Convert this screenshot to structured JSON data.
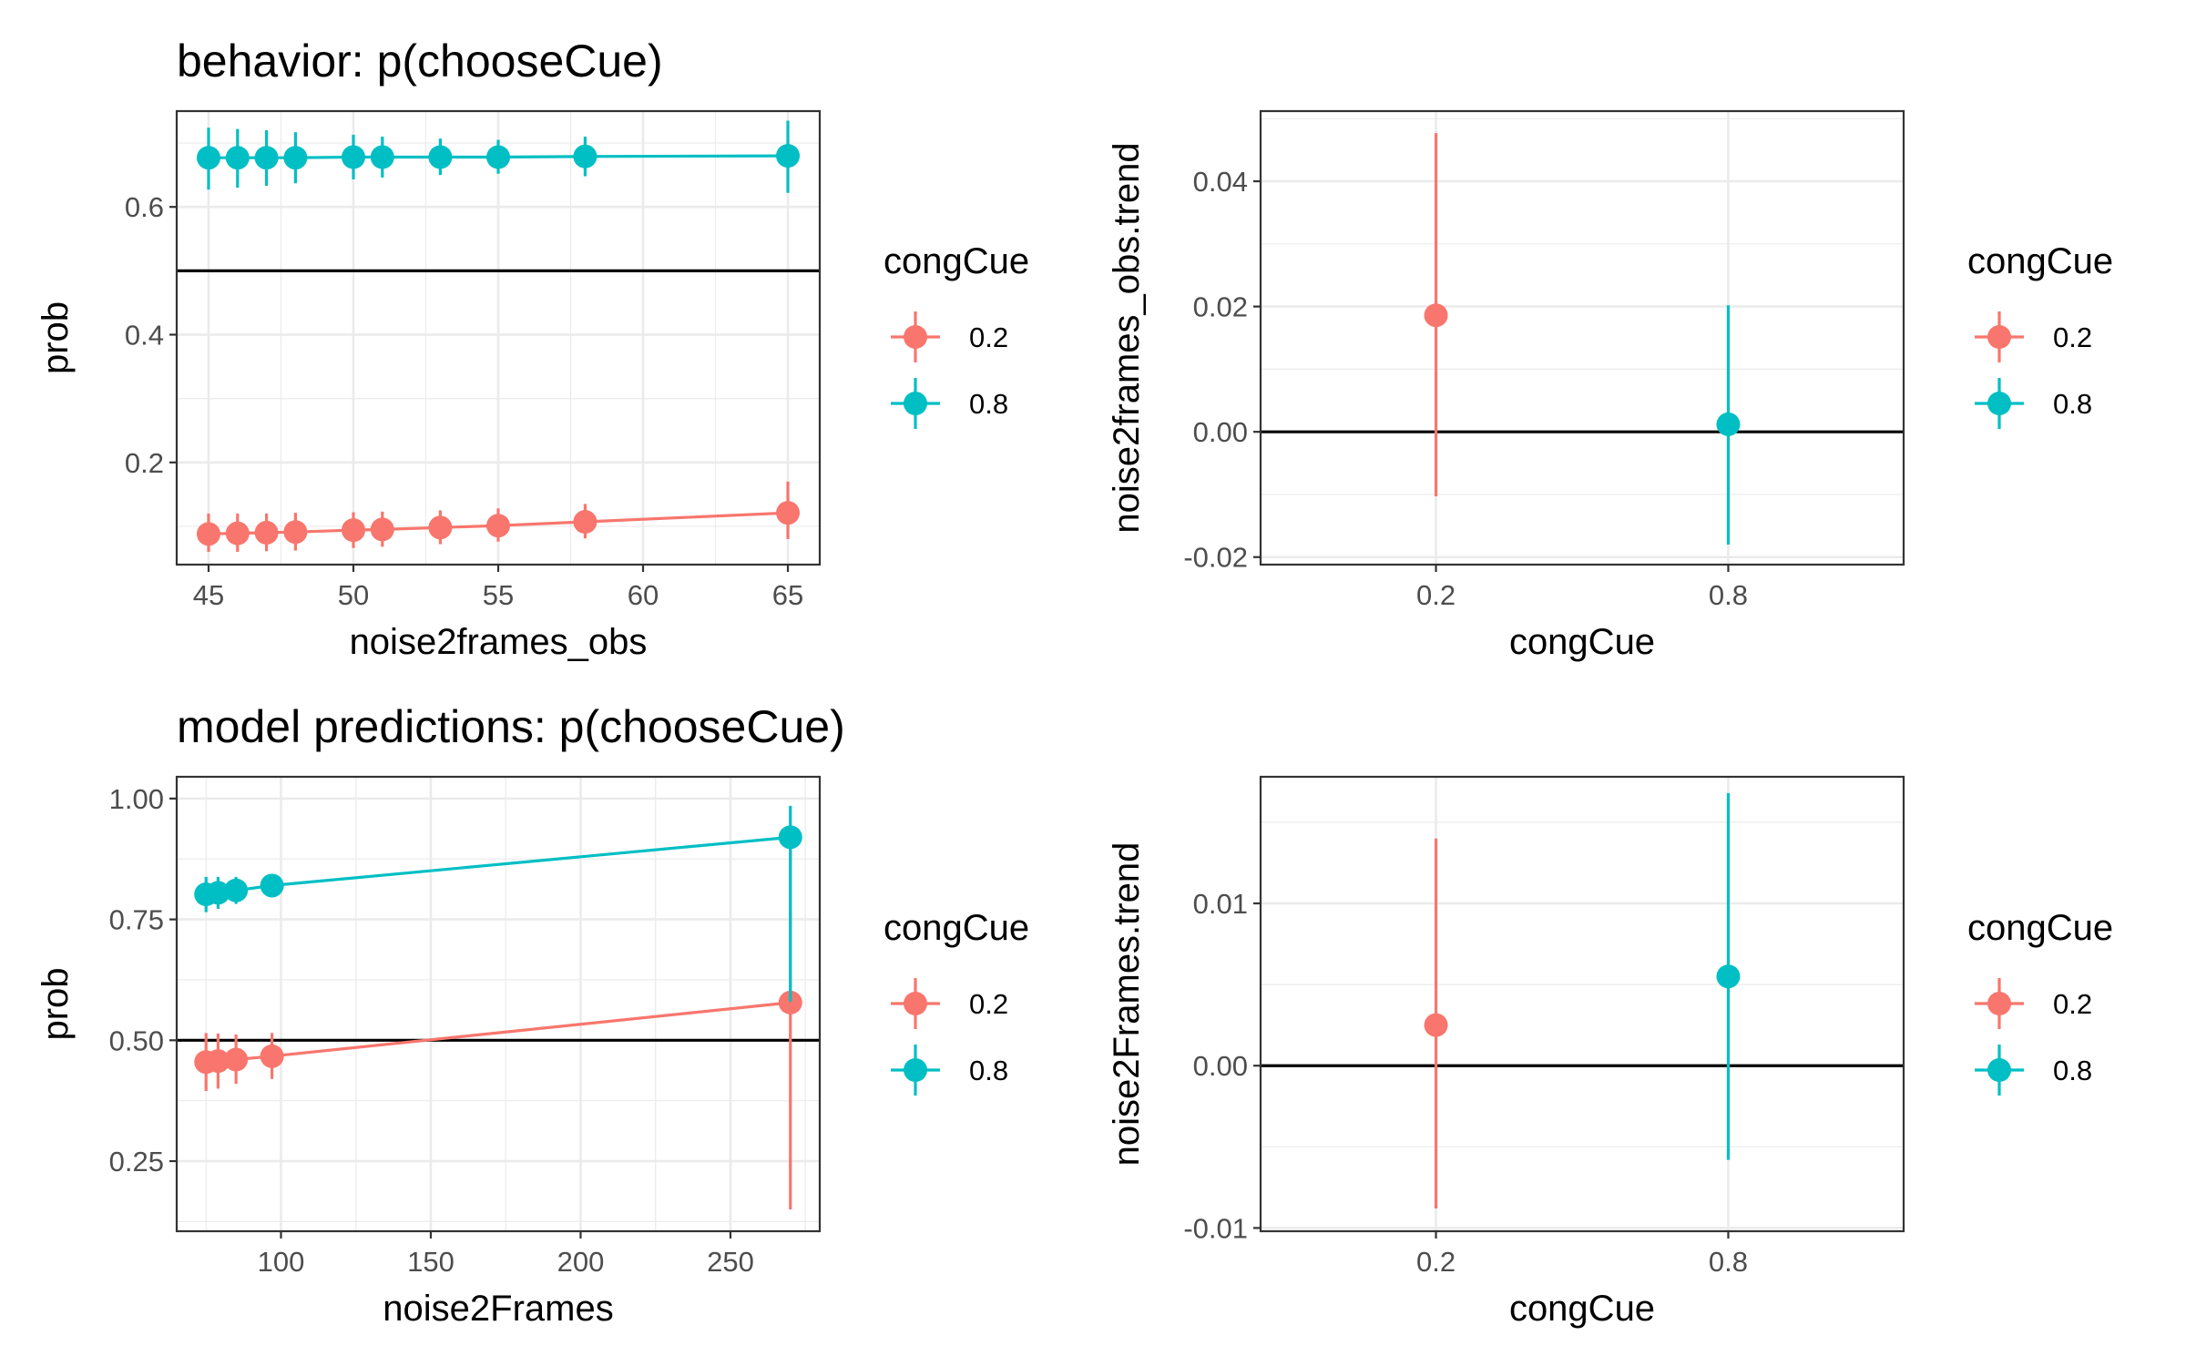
{
  "colors": {
    "c02": "#F8766D",
    "c08": "#00BFC4",
    "grid": "#EBEBEB",
    "ref": "#000000",
    "axis": "#333333"
  },
  "chart_data": [
    {
      "type": "line",
      "title": "behavior: p(chooseCue)",
      "xlabel": "noise2frames_obs",
      "ylabel": "prob",
      "xlim": [
        43.9,
        66.1
      ],
      "ylim": [
        0.04,
        0.75
      ],
      "xticks": [
        45,
        50,
        55,
        60,
        65
      ],
      "xtick_labels": [
        "45",
        "50",
        "55",
        "60",
        "65"
      ],
      "yticks": [
        0.2,
        0.4,
        0.6
      ],
      "ytick_labels": [
        "0.2",
        "0.4",
        "0.6"
      ],
      "hline": 0.5,
      "legend": {
        "title": "congCue",
        "labels": [
          "0.2",
          "0.8"
        ],
        "position": "right"
      },
      "series": [
        {
          "name": "0.2",
          "x": [
            45,
            46,
            47,
            48,
            50,
            51,
            53,
            55,
            58,
            65
          ],
          "y": [
            0.088,
            0.089,
            0.09,
            0.091,
            0.094,
            0.095,
            0.098,
            0.101,
            0.107,
            0.121
          ],
          "lo": [
            0.06,
            0.06,
            0.061,
            0.062,
            0.066,
            0.068,
            0.072,
            0.076,
            0.081,
            0.08
          ],
          "hi": [
            0.12,
            0.12,
            0.12,
            0.121,
            0.122,
            0.123,
            0.125,
            0.128,
            0.135,
            0.17
          ]
        },
        {
          "name": "0.8",
          "x": [
            45,
            46,
            47,
            48,
            50,
            51,
            53,
            55,
            58,
            65
          ],
          "y": [
            0.677,
            0.677,
            0.677,
            0.677,
            0.678,
            0.678,
            0.678,
            0.678,
            0.679,
            0.68
          ],
          "lo": [
            0.627,
            0.63,
            0.633,
            0.637,
            0.643,
            0.646,
            0.65,
            0.652,
            0.648,
            0.622
          ],
          "hi": [
            0.724,
            0.722,
            0.72,
            0.717,
            0.713,
            0.71,
            0.707,
            0.705,
            0.71,
            0.735
          ]
        }
      ]
    },
    {
      "type": "scatter",
      "title": "",
      "xlabel": "congCue",
      "ylabel": "noise2frames_obs.trend",
      "categories": [
        "0.2",
        "0.8"
      ],
      "ylim": [
        -0.0212,
        0.0512
      ],
      "yticks": [
        -0.02,
        0.0,
        0.02,
        0.04
      ],
      "ytick_labels": [
        "-0.02",
        "0.00",
        "0.02",
        "0.04"
      ],
      "hline": 0,
      "legend": {
        "title": "congCue",
        "labels": [
          "0.2",
          "0.8"
        ],
        "position": "right"
      },
      "series": [
        {
          "name": "0.2",
          "category": "0.2",
          "y": 0.0186,
          "lo": -0.0103,
          "hi": 0.0477
        },
        {
          "name": "0.8",
          "category": "0.8",
          "y": 0.0012,
          "lo": -0.018,
          "hi": 0.0202
        }
      ]
    },
    {
      "type": "line",
      "title": "model predictions: p(chooseCue)",
      "xlabel": "noise2Frames",
      "ylabel": "prob",
      "xlim": [
        65.2,
        279.8
      ],
      "ylim": [
        0.105,
        1.045
      ],
      "xticks": [
        100,
        150,
        200,
        250
      ],
      "xtick_labels": [
        "100",
        "150",
        "200",
        "250"
      ],
      "yticks": [
        0.25,
        0.5,
        0.75,
        1.0
      ],
      "ytick_labels": [
        "0.25",
        "0.50",
        "0.75",
        "1.00"
      ],
      "hline": 0.5,
      "legend": {
        "title": "congCue",
        "labels": [
          "0.2",
          "0.8"
        ],
        "position": "right"
      },
      "series": [
        {
          "name": "0.2",
          "x": [
            75,
            79,
            85,
            97,
            270
          ],
          "y": [
            0.455,
            0.457,
            0.46,
            0.467,
            0.578
          ],
          "lo": [
            0.395,
            0.4,
            0.41,
            0.42,
            0.15
          ],
          "hi": [
            0.515,
            0.514,
            0.512,
            0.515,
            0.9
          ]
        },
        {
          "name": "0.8",
          "x": [
            75,
            79,
            85,
            97,
            270
          ],
          "y": [
            0.802,
            0.805,
            0.81,
            0.82,
            0.92
          ],
          "lo": [
            0.765,
            0.772,
            0.782,
            0.8,
            0.58
          ],
          "hi": [
            0.838,
            0.838,
            0.838,
            0.842,
            0.985
          ]
        }
      ]
    },
    {
      "type": "scatter",
      "title": "",
      "xlabel": "congCue",
      "ylabel": "noise2Frames.trend",
      "categories": [
        "0.2",
        "0.8"
      ],
      "ylim": [
        -0.0102,
        0.0178
      ],
      "yticks": [
        -0.01,
        0.0,
        0.01
      ],
      "ytick_labels": [
        "-0.01",
        "0.00",
        "0.01"
      ],
      "hline": 0,
      "legend": {
        "title": "congCue",
        "labels": [
          "0.2",
          "0.8"
        ],
        "position": "right"
      },
      "series": [
        {
          "name": "0.2",
          "category": "0.2",
          "y": 0.0025,
          "lo": -0.0088,
          "hi": 0.014
        },
        {
          "name": "0.8",
          "category": "0.8",
          "y": 0.0055,
          "lo": -0.0058,
          "hi": 0.0168
        }
      ]
    }
  ]
}
